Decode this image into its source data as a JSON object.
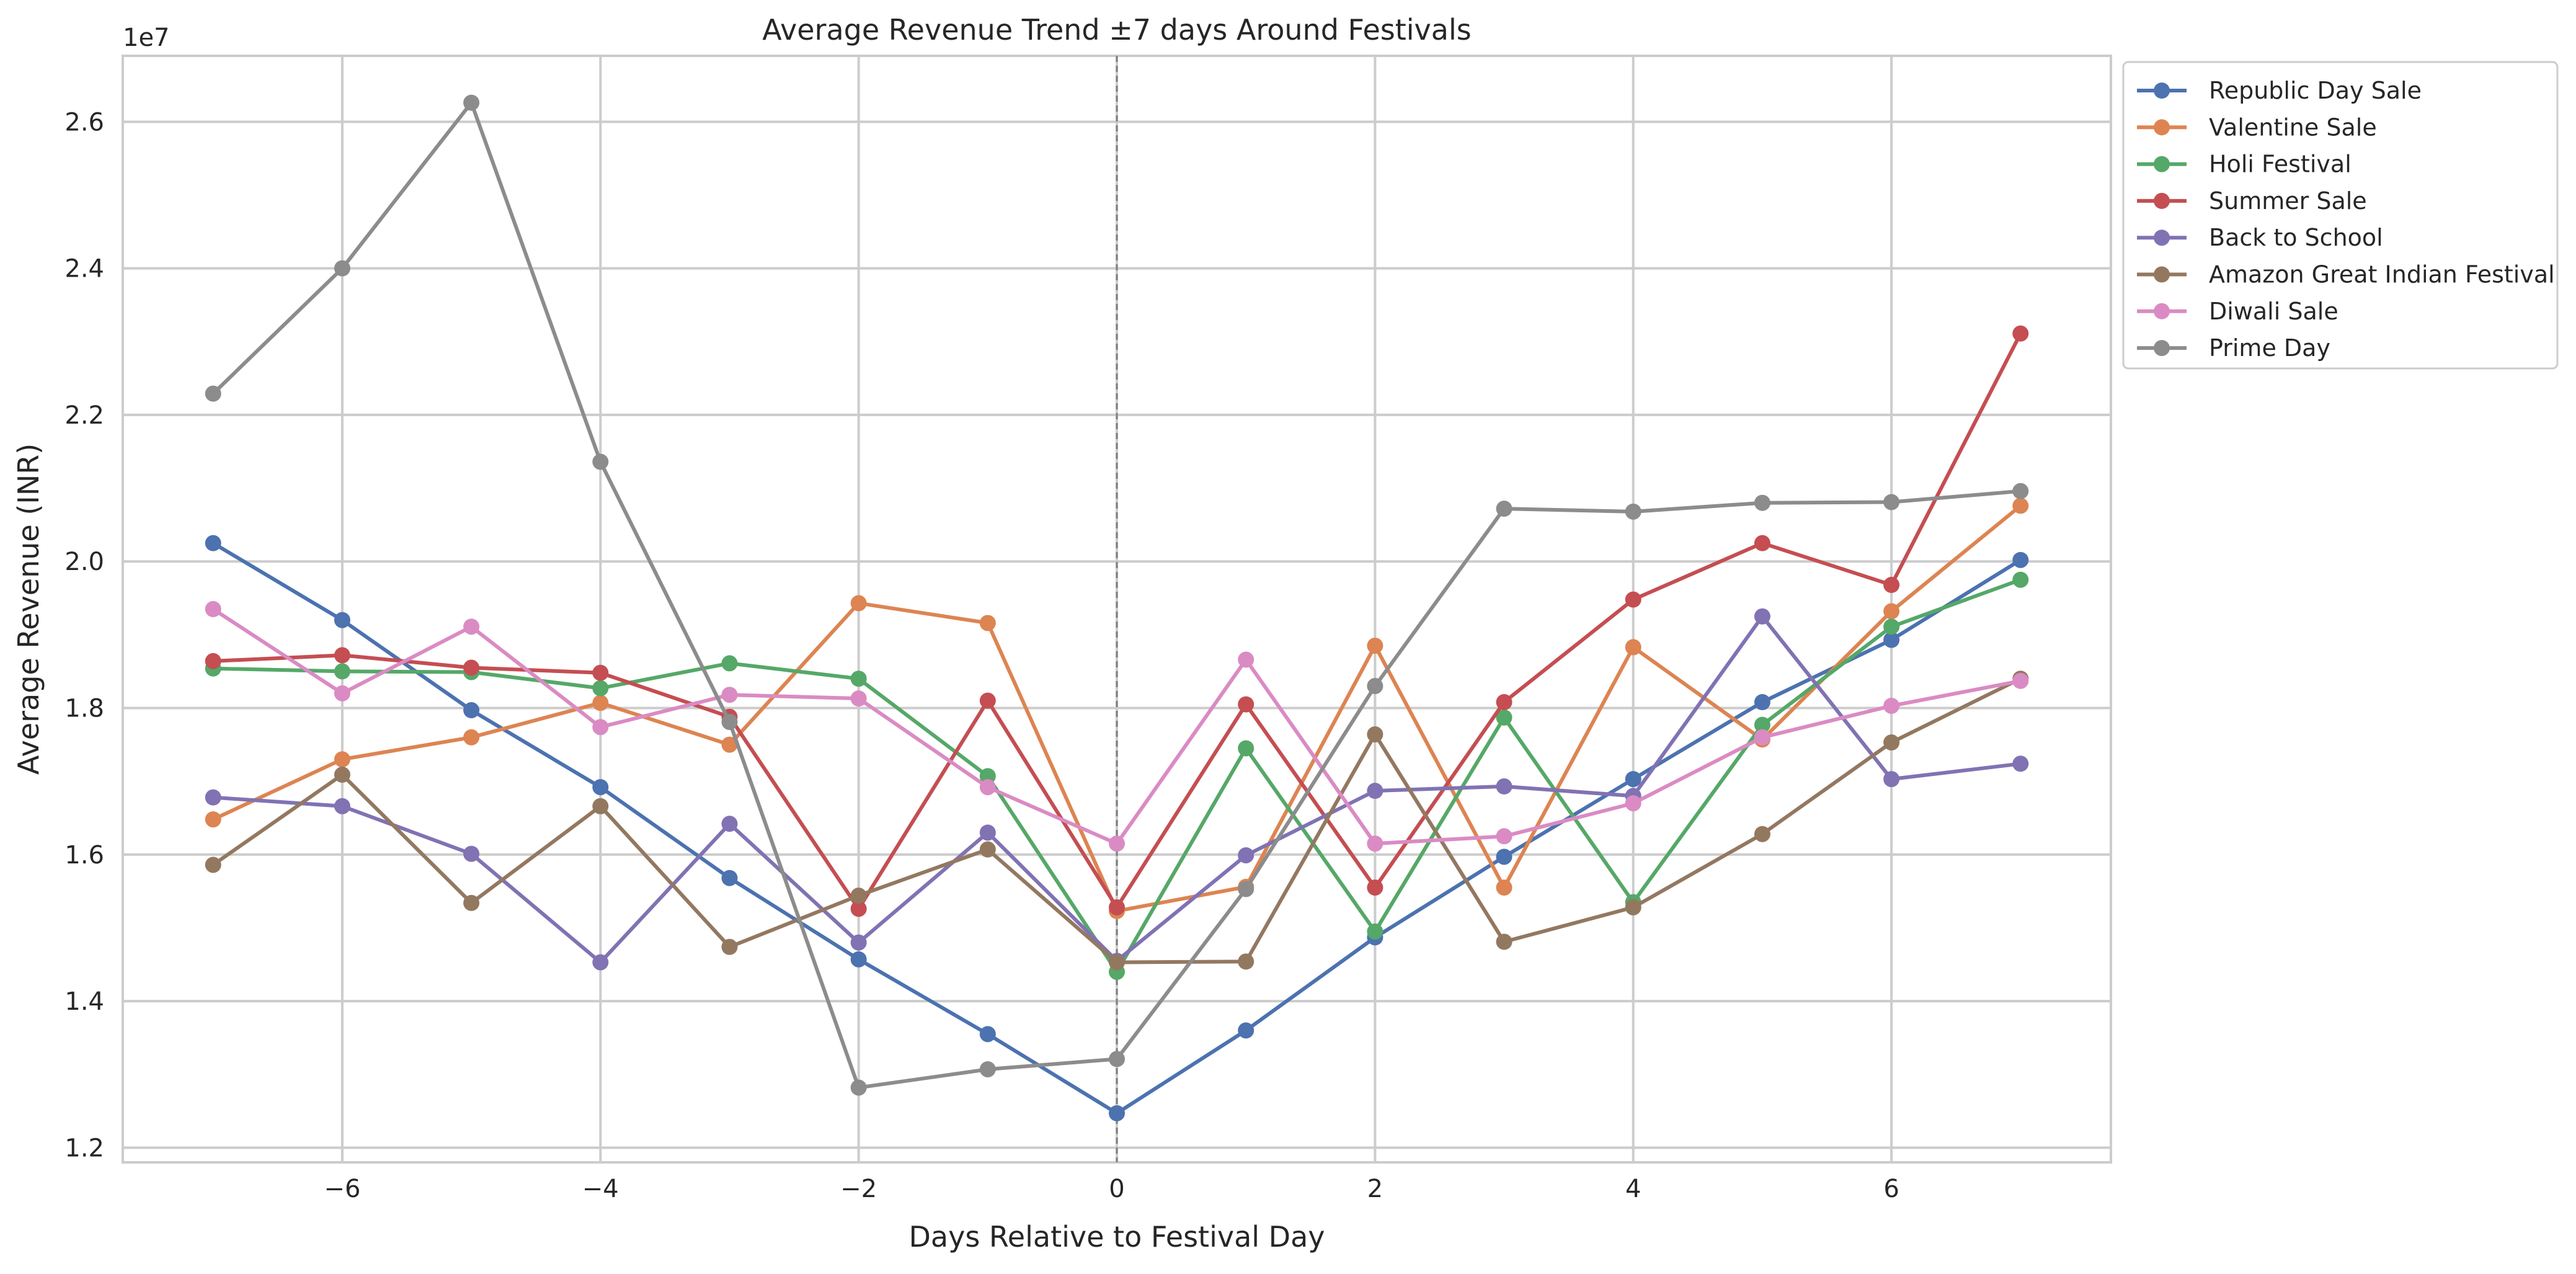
{
  "chart_data": {
    "type": "line",
    "title": "Average Revenue Trend ±7 days Around Festivals",
    "xlabel": "Days Relative to Festival Day",
    "ylabel": "Average Revenue (INR)",
    "y_offset_label": "1e7",
    "x": [
      -7,
      -6,
      -5,
      -4,
      -3,
      -2,
      -1,
      0,
      1,
      2,
      3,
      4,
      5,
      6,
      7
    ],
    "xlim": [
      -7.7,
      7.7
    ],
    "ylim": [
      11800000,
      26900000
    ],
    "x_ticks": [
      -6,
      -4,
      -2,
      0,
      2,
      4,
      6
    ],
    "x_tick_labels": [
      "−6",
      "−4",
      "−2",
      "0",
      "2",
      "4",
      "6"
    ],
    "y_ticks": [
      12000000,
      14000000,
      16000000,
      18000000,
      20000000,
      22000000,
      24000000,
      26000000
    ],
    "y_tick_labels": [
      "1.2",
      "1.4",
      "1.6",
      "1.8",
      "2.0",
      "2.2",
      "2.4",
      "2.6"
    ],
    "grid": true,
    "legend_placement": "outside-top-right",
    "reference_line_x": 0,
    "series": [
      {
        "name": "Republic Day Sale",
        "color": "#4c72b0",
        "values": [
          20250000,
          19200000,
          17970000,
          16920000,
          15680000,
          14570000,
          13550000,
          12470000,
          13600000,
          14870000,
          15970000,
          17030000,
          18080000,
          18930000,
          20020000
        ]
      },
      {
        "name": "Valentine Sale",
        "color": "#dd8452",
        "values": [
          16480000,
          17300000,
          17600000,
          18070000,
          17500000,
          19430000,
          19160000,
          15230000,
          15560000,
          18850000,
          15550000,
          18830000,
          17570000,
          19320000,
          20760000
        ]
      },
      {
        "name": "Holi Festival",
        "color": "#55a868",
        "values": [
          18540000,
          18500000,
          18490000,
          18270000,
          18610000,
          18400000,
          17070000,
          14400000,
          17450000,
          14950000,
          17870000,
          15350000,
          17770000,
          19110000,
          19750000
        ]
      },
      {
        "name": "Summer Sale",
        "color": "#c44e52",
        "values": [
          18640000,
          18720000,
          18550000,
          18480000,
          17880000,
          15260000,
          18100000,
          15280000,
          18050000,
          15550000,
          18080000,
          19480000,
          20250000,
          19680000,
          23110000
        ]
      },
      {
        "name": "Back to School",
        "color": "#8172b3",
        "values": [
          16780000,
          16660000,
          16010000,
          14530000,
          16420000,
          14800000,
          16300000,
          14550000,
          15990000,
          16870000,
          16930000,
          16800000,
          19250000,
          17030000,
          17240000
        ]
      },
      {
        "name": "Amazon Great Indian Festival",
        "color": "#937860",
        "values": [
          15860000,
          17090000,
          15340000,
          16660000,
          14740000,
          15440000,
          16070000,
          14530000,
          14540000,
          17640000,
          14810000,
          15280000,
          16280000,
          17530000,
          18400000
        ]
      },
      {
        "name": "Diwali Sale",
        "color": "#da8bc3",
        "values": [
          19350000,
          18200000,
          19110000,
          17740000,
          18180000,
          18130000,
          16920000,
          16150000,
          18660000,
          16150000,
          16250000,
          16700000,
          17600000,
          18030000,
          18370000
        ]
      },
      {
        "name": "Prime Day",
        "color": "#8c8c8c",
        "values": [
          22290000,
          24000000,
          26260000,
          21360000,
          17810000,
          12820000,
          13070000,
          13210000,
          15530000,
          18300000,
          20720000,
          20680000,
          20800000,
          20810000,
          20960000
        ]
      }
    ]
  }
}
